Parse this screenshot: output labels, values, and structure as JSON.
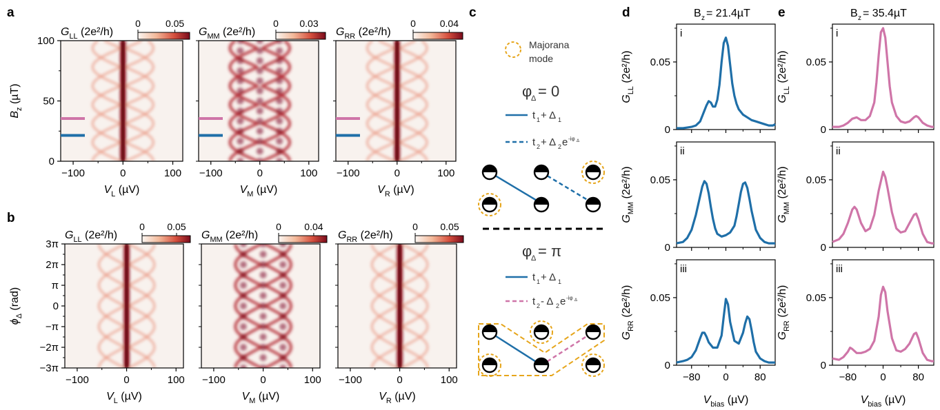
{
  "colors": {
    "blue": "#1f6fa8",
    "pink": "#cf75a8",
    "majorana": "#e6a51a",
    "heat_low": "#f8f2ee",
    "heat_high": "#800d1f"
  },
  "panel_labels": [
    "a",
    "b",
    "c",
    "d",
    "e"
  ],
  "chart_data": [
    {
      "id": "a-LL",
      "type": "heatmap",
      "title": "G_LL (2e²/h)",
      "cbar_ticks": [
        "0",
        "0.05"
      ],
      "cbar_range": [
        0,
        0.07
      ],
      "xlabel": "V_L (µV)",
      "x_ticks": [
        -100,
        0,
        100
      ],
      "xlim": [
        -125,
        120
      ],
      "ylabel": "B_z (µT)",
      "y_ticks": [
        0,
        50,
        100
      ],
      "ylim": [
        0,
        100
      ],
      "markers": [
        {
          "y": 35.4,
          "color": "pink"
        },
        {
          "y": 21.4,
          "color": "blue"
        }
      ],
      "pattern": "magnetic",
      "zero_bias_peak": true,
      "crossing_strength": 0.35
    },
    {
      "id": "a-MM",
      "type": "heatmap",
      "title": "G_MM (2e²/h)",
      "cbar_ticks": [
        "0",
        "0.03"
      ],
      "cbar_range": [
        0,
        0.045
      ],
      "xlabel": "V_M (µV)",
      "x_ticks": [
        -100,
        0,
        100
      ],
      "xlim": [
        -125,
        120
      ],
      "ylim": [
        0,
        100
      ],
      "markers": [
        {
          "y": 35.4,
          "color": "pink"
        },
        {
          "y": 21.4,
          "color": "blue"
        }
      ],
      "pattern": "magnetic",
      "zero_bias_peak": false,
      "crossing_strength": 1.0
    },
    {
      "id": "a-RR",
      "type": "heatmap",
      "title": "G_RR (2e²/h)",
      "cbar_ticks": [
        "0",
        "0.04"
      ],
      "cbar_range": [
        0,
        0.055
      ],
      "xlabel": "V_R (µV)",
      "x_ticks": [
        -100,
        0,
        100
      ],
      "xlim": [
        -125,
        120
      ],
      "ylim": [
        0,
        100
      ],
      "markers": [
        {
          "y": 35.4,
          "color": "pink"
        },
        {
          "y": 21.4,
          "color": "blue"
        }
      ],
      "pattern": "magnetic",
      "zero_bias_peak": true,
      "crossing_strength": 0.4
    },
    {
      "id": "b-LL",
      "type": "heatmap",
      "title": "G_LL (2e²/h)",
      "cbar_ticks": [
        "0",
        "0.05"
      ],
      "cbar_range": [
        0,
        0.07
      ],
      "xlabel": "V_L (µV)",
      "x_ticks": [
        -100,
        0,
        100
      ],
      "xlim": [
        -125,
        115
      ],
      "ylabel": "ϕ_Δ (rad)",
      "y_ticks": [
        "−3π",
        "−2π",
        "−π",
        "0",
        "π",
        "2π",
        "3π"
      ],
      "ylim": [
        -3,
        3
      ],
      "pattern": "phase",
      "zero_bias_peak": true,
      "crossing_strength": 0.35
    },
    {
      "id": "b-MM",
      "type": "heatmap",
      "title": "G_MM (2e²/h)",
      "cbar_ticks": [
        "0",
        "0.04"
      ],
      "cbar_range": [
        0,
        0.055
      ],
      "xlabel": "V_M (µV)",
      "x_ticks": [
        -100,
        0,
        100
      ],
      "xlim": [
        -125,
        115
      ],
      "ylim": [
        -3,
        3
      ],
      "pattern": "phase",
      "zero_bias_peak": false,
      "crossing_strength": 1.0
    },
    {
      "id": "b-RR",
      "type": "heatmap",
      "title": "G_RR (2e²/h)",
      "cbar_ticks": [
        "0",
        "0.05"
      ],
      "cbar_range": [
        0,
        0.07
      ],
      "xlabel": "V_R (µV)",
      "x_ticks": [
        -100,
        0,
        100
      ],
      "xlim": [
        -125,
        115
      ],
      "ylim": [
        -3,
        3
      ],
      "pattern": "phase",
      "zero_bias_peak": true,
      "crossing_strength": 0.35
    },
    {
      "id": "d-i",
      "type": "line",
      "color": "blue",
      "roman": "i",
      "ylabel": "G_LL (2e²/h)",
      "y_ticks": [
        0,
        0.05
      ],
      "ylim": [
        0,
        0.078
      ],
      "xlim": [
        -115,
        115
      ],
      "x": [
        -115,
        -100,
        -90,
        -80,
        -70,
        -60,
        -50,
        -45,
        -40,
        -35,
        -30,
        -25,
        -20,
        -15,
        -10,
        -5,
        0,
        5,
        10,
        15,
        20,
        25,
        30,
        40,
        50,
        60,
        70,
        80,
        90,
        100,
        110,
        115
      ],
      "y": [
        0.001,
        0.001,
        0.0015,
        0.002,
        0.003,
        0.006,
        0.014,
        0.018,
        0.021,
        0.02,
        0.017,
        0.017,
        0.022,
        0.033,
        0.05,
        0.064,
        0.068,
        0.062,
        0.048,
        0.034,
        0.025,
        0.019,
        0.015,
        0.011,
        0.009,
        0.007,
        0.006,
        0.005,
        0.004,
        0.003,
        0.003,
        0.004
      ]
    },
    {
      "id": "d-ii",
      "type": "line",
      "color": "blue",
      "roman": "ii",
      "ylabel": "G_MM (2e²/h)",
      "y_ticks": [
        0,
        0.05
      ],
      "ylim": [
        0,
        0.078
      ],
      "xlim": [
        -115,
        115
      ],
      "x": [
        -115,
        -100,
        -90,
        -80,
        -70,
        -60,
        -55,
        -50,
        -45,
        -40,
        -35,
        -30,
        -25,
        -20,
        -10,
        0,
        10,
        20,
        25,
        30,
        35,
        40,
        45,
        50,
        55,
        60,
        70,
        80,
        90,
        100,
        110,
        115
      ],
      "y": [
        0.003,
        0.004,
        0.007,
        0.013,
        0.024,
        0.038,
        0.045,
        0.049,
        0.047,
        0.04,
        0.03,
        0.021,
        0.014,
        0.01,
        0.008,
        0.009,
        0.011,
        0.016,
        0.023,
        0.032,
        0.041,
        0.047,
        0.048,
        0.044,
        0.036,
        0.027,
        0.013,
        0.007,
        0.004,
        0.003,
        0.003,
        0.003
      ]
    },
    {
      "id": "d-iii",
      "type": "line",
      "color": "blue",
      "roman": "iii",
      "ylabel": "G_RR (2e²/h)",
      "y_ticks": [
        0,
        0.05
      ],
      "ylim": [
        0,
        0.078
      ],
      "xlim": [
        -115,
        115
      ],
      "x": [
        -115,
        -100,
        -90,
        -80,
        -70,
        -60,
        -55,
        -50,
        -45,
        -40,
        -30,
        -20,
        -10,
        -5,
        0,
        5,
        10,
        20,
        30,
        40,
        45,
        50,
        55,
        60,
        65,
        70,
        80,
        90,
        100,
        110,
        115
      ],
      "y": [
        0.002,
        0.003,
        0.004,
        0.006,
        0.011,
        0.02,
        0.024,
        0.024,
        0.021,
        0.017,
        0.013,
        0.013,
        0.022,
        0.036,
        0.049,
        0.045,
        0.032,
        0.018,
        0.016,
        0.024,
        0.031,
        0.036,
        0.034,
        0.026,
        0.017,
        0.01,
        0.005,
        0.003,
        0.002,
        0.002,
        0.002
      ]
    },
    {
      "id": "e-i",
      "type": "line",
      "color": "pink",
      "roman": "i",
      "ylabel": "G_LL (2e²/h)",
      "y_ticks": [
        0,
        0.05
      ],
      "ylim": [
        0,
        0.078
      ],
      "xlim": [
        -115,
        115
      ],
      "x": [
        -115,
        -100,
        -90,
        -80,
        -70,
        -60,
        -50,
        -40,
        -30,
        -20,
        -15,
        -10,
        -5,
        0,
        5,
        10,
        15,
        20,
        30,
        40,
        50,
        60,
        70,
        75,
        80,
        90,
        100,
        110,
        115
      ],
      "y": [
        0.002,
        0.002,
        0.003,
        0.005,
        0.008,
        0.009,
        0.007,
        0.007,
        0.01,
        0.02,
        0.035,
        0.055,
        0.072,
        0.075,
        0.068,
        0.05,
        0.032,
        0.02,
        0.01,
        0.006,
        0.005,
        0.006,
        0.009,
        0.01,
        0.009,
        0.005,
        0.003,
        0.002,
        0.002
      ]
    },
    {
      "id": "e-ii",
      "type": "line",
      "color": "pink",
      "roman": "ii",
      "ylabel": "G_MM (2e²/h)",
      "y_ticks": [
        0,
        0.05
      ],
      "ylim": [
        0,
        0.078
      ],
      "xlim": [
        -115,
        115
      ],
      "x": [
        -115,
        -100,
        -90,
        -80,
        -70,
        -65,
        -60,
        -50,
        -40,
        -30,
        -20,
        -10,
        0,
        5,
        10,
        20,
        30,
        40,
        50,
        60,
        70,
        75,
        80,
        90,
        100,
        110,
        115
      ],
      "y": [
        0.004,
        0.006,
        0.01,
        0.018,
        0.028,
        0.03,
        0.028,
        0.018,
        0.012,
        0.014,
        0.024,
        0.042,
        0.056,
        0.052,
        0.044,
        0.026,
        0.014,
        0.011,
        0.012,
        0.018,
        0.024,
        0.025,
        0.021,
        0.01,
        0.004,
        0.003,
        0.003
      ]
    },
    {
      "id": "e-iii",
      "type": "line",
      "color": "pink",
      "roman": "iii",
      "ylabel": "G_RR (2e²/h)",
      "y_ticks": [
        0,
        0.05
      ],
      "ylim": [
        0,
        0.078
      ],
      "xlim": [
        -115,
        115
      ],
      "x": [
        -115,
        -100,
        -90,
        -80,
        -75,
        -70,
        -60,
        -50,
        -40,
        -30,
        -20,
        -10,
        -5,
        0,
        5,
        10,
        20,
        30,
        40,
        50,
        60,
        70,
        75,
        80,
        90,
        100,
        110,
        115
      ],
      "y": [
        0.005,
        0.004,
        0.006,
        0.01,
        0.013,
        0.012,
        0.009,
        0.009,
        0.01,
        0.012,
        0.018,
        0.036,
        0.052,
        0.058,
        0.054,
        0.04,
        0.02,
        0.011,
        0.01,
        0.012,
        0.016,
        0.023,
        0.024,
        0.02,
        0.009,
        0.004,
        0.003,
        0.003
      ]
    }
  ],
  "top_titles": {
    "d": "B_z= 21.4µT",
    "e": "B_z= 35.4µT"
  },
  "line_x_ticks": [
    -80,
    0,
    80
  ],
  "line_xlabel": "V_bias (µV)",
  "schematic": {
    "legend_label_1": "Majorana",
    "legend_label_2": "mode",
    "phi0_title": "φ_Δ= 0",
    "phi0_line1": "t_1+ Δ_1",
    "phi0_line2": "t_2+ Δ_2e^-iφΔ",
    "phipi_title": "φ_Δ= π",
    "phipi_line1": "t_1+ Δ_1",
    "phipi_line2": "t_2- Δ_2e^-iφΔ"
  }
}
